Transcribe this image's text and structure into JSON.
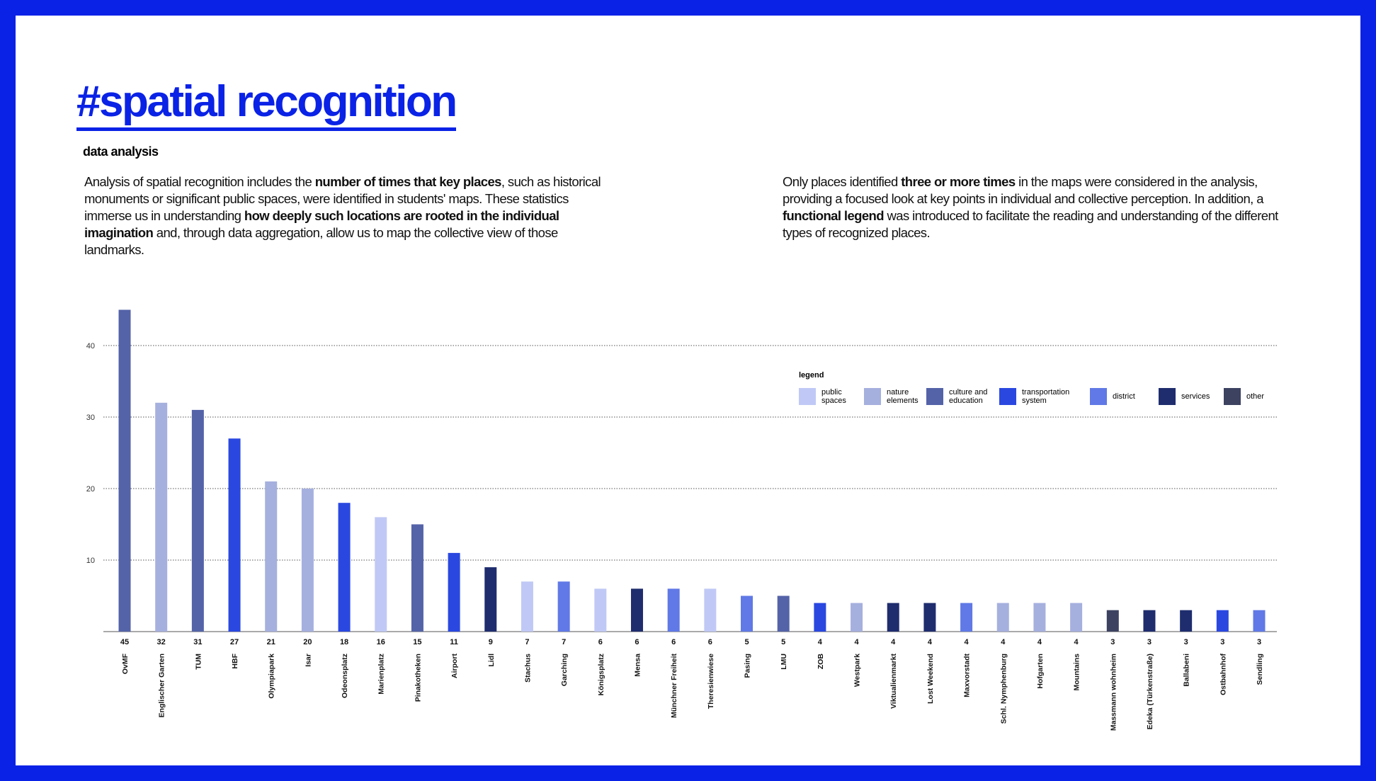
{
  "header": {
    "title": "#spatial recognition",
    "subtitle": "data analysis"
  },
  "paragraphs": [
    [
      {
        "text": "Analysis of spatial recognition includes the ",
        "bold": false
      },
      {
        "text": "number of times that key places",
        "bold": true
      },
      {
        "text": ", such as historical monuments or significant public spaces, were identified in students' maps. These statistics immerse us in understanding ",
        "bold": false
      },
      {
        "text": "how deeply such locations are rooted in the individual imagination",
        "bold": true
      },
      {
        "text": " and, through data aggregation, allow us to map the collective view of those landmarks.",
        "bold": false
      }
    ],
    [
      {
        "text": "Only places identified ",
        "bold": false
      },
      {
        "text": "three or more times",
        "bold": true
      },
      {
        "text": " in the maps were considered in the analysis, providing a focused look at key points in individual and collective perception. In addition, a ",
        "bold": false
      },
      {
        "text": "functional legend",
        "bold": true
      },
      {
        "text": " was introduced to facilitate the reading and understanding of the different types of recognized places.",
        "bold": false
      }
    ]
  ],
  "chart_data": {
    "type": "bar",
    "categories": [
      "OvMF",
      "Englischer Garten",
      "TUM",
      "HBF",
      "Olympiapark",
      "Isar",
      "Odeonsplatz",
      "Marienplatz",
      "Pinakotheken",
      "Airport",
      "Lidl",
      "Stachus",
      "Garching",
      "Königsplatz",
      "Mensa",
      "Münchner Freiheit",
      "Theresienwiese",
      "Pasing",
      "LMU",
      "ZOB",
      "Westpark",
      "Viktualienmarkt",
      "Lost Weekend",
      "Maxvorstadt",
      "Schl. Nymphenburg",
      "Hofgarten",
      "Mountains",
      "Massmann wohnheim",
      "Edeka (Türkenstraße)",
      "Ballabeni",
      "Ostbahnhof",
      "Sendling"
    ],
    "values": [
      45,
      32,
      31,
      27,
      21,
      20,
      18,
      16,
      15,
      11,
      9,
      7,
      7,
      6,
      6,
      6,
      6,
      5,
      5,
      4,
      4,
      4,
      4,
      4,
      4,
      4,
      4,
      3,
      3,
      3,
      3,
      3
    ],
    "colors": [
      "#5463a8",
      "#a6b0de",
      "#5463a8",
      "#2a48e0",
      "#a6b0de",
      "#a6b0de",
      "#2a48e0",
      "#c0c9f5",
      "#5463a8",
      "#2a48e0",
      "#1f2d6e",
      "#c0c9f5",
      "#6079e6",
      "#c0c9f5",
      "#1f2d6e",
      "#6079e6",
      "#c0c9f5",
      "#6079e6",
      "#5463a8",
      "#2a48e0",
      "#a6b0de",
      "#1f2d6e",
      "#1f2d6e",
      "#6079e6",
      "#a6b0de",
      "#a6b0de",
      "#a6b0de",
      "#3c4260",
      "#1f2d6e",
      "#1f2d6e",
      "#2a48e0",
      "#6079e6"
    ],
    "ylim": [
      0,
      47
    ],
    "yticks": [
      10,
      20,
      30,
      40
    ],
    "grid": true,
    "legend_title": "legend",
    "legend": [
      {
        "name": "public spaces",
        "color": "#c0c9f5"
      },
      {
        "name": "nature elements",
        "color": "#a6b0de"
      },
      {
        "name": "culture and education",
        "color": "#5463a8"
      },
      {
        "name": "transportation system",
        "color": "#2a48e0"
      },
      {
        "name": "district",
        "color": "#6079e6"
      },
      {
        "name": "services",
        "color": "#1f2d6e"
      },
      {
        "name": "other",
        "color": "#3c4260"
      }
    ]
  }
}
